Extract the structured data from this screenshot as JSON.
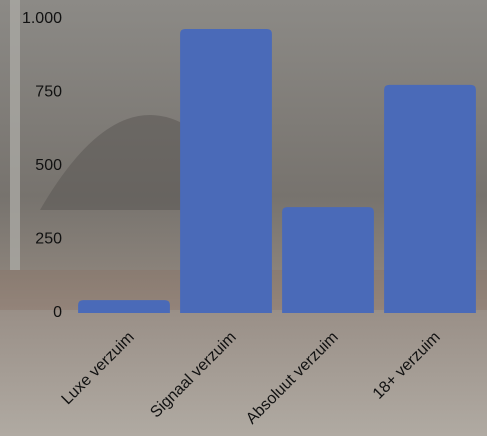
{
  "chart_data": {
    "type": "bar",
    "categories": [
      "Luxe verzuim",
      "Signaal verzuim",
      "Absoluut verzuim",
      "18+ verzuim"
    ],
    "values": [
      44,
      966,
      360,
      776
    ],
    "color": "#4a6ab8",
    "ylim": [
      0,
      1000
    ],
    "yticks": [
      0,
      250,
      500,
      750,
      {
        "value": 1000,
        "label": "1.000"
      }
    ],
    "grid": false
  }
}
